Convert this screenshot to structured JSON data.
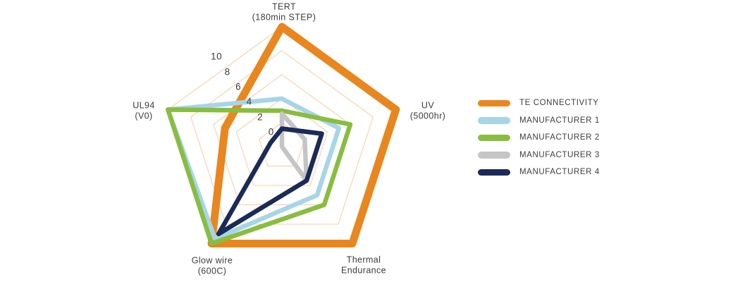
{
  "chart_data": {
    "type": "radar",
    "title": "",
    "axes": [
      {
        "name": "TERT",
        "sub": "(180min STEP)"
      },
      {
        "name": "UV",
        "sub": "(5000hr)"
      },
      {
        "name": "Thermal",
        "sub": "Endurance"
      },
      {
        "name": "Glow wire",
        "sub": "(600C)"
      },
      {
        "name": "UL94",
        "sub": "(V0)"
      }
    ],
    "scale": {
      "min": 0,
      "max": 10,
      "ticks": [
        10,
        8,
        6,
        4,
        2,
        0
      ]
    },
    "series": [
      {
        "name": "TE CONNECTIVITY",
        "color": "#E9861E",
        "stroke_width": 11,
        "values": [
          10,
          10,
          10,
          10,
          5
        ]
      },
      {
        "name": "MANUFACTURER 1",
        "color": "#A7D5E8",
        "stroke_width": 6.5,
        "values": [
          4,
          5,
          5,
          9.5,
          10
        ]
      },
      {
        "name": "MANUFACTURER 2",
        "color": "#89BD40",
        "stroke_width": 6.5,
        "values": [
          3,
          6,
          6,
          10,
          10
        ]
      },
      {
        "name": "MANUFACTURER 3",
        "color": "#C5C5C5",
        "stroke_width": 6.5,
        "values": [
          2.75,
          2,
          3.5,
          0,
          0
        ]
      },
      {
        "name": "MANUFACTURER 4",
        "color": "#1B2B57",
        "stroke_width": 6.5,
        "values": [
          1.5,
          3.5,
          3.5,
          9,
          1
        ]
      }
    ],
    "grid": {
      "color": "#F6CCA2",
      "rings": [
        2,
        4,
        6,
        8,
        10
      ]
    },
    "text_color": "#3C3C3C",
    "legend_position": "right"
  }
}
